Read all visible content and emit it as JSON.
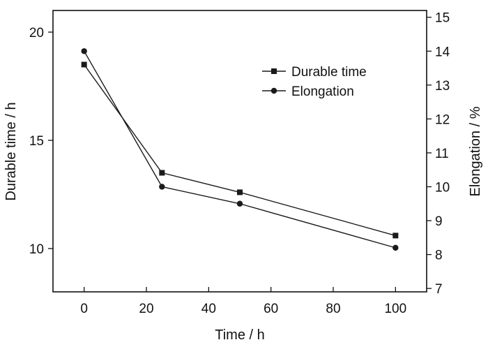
{
  "chart_data": {
    "type": "line",
    "x": [
      0,
      25,
      50,
      100
    ],
    "xlabel": "Time / h",
    "ylabel_left": "Durable time / h",
    "ylabel_right": "Elongation / %",
    "xlim": [
      -10,
      110
    ],
    "ylim_left": [
      8,
      21
    ],
    "ylim_right": [
      6.9,
      15.2
    ],
    "xticks": [
      0,
      20,
      40,
      60,
      80,
      100
    ],
    "yticks_left": [
      10,
      15,
      20
    ],
    "yticks_right": [
      7,
      8,
      9,
      10,
      11,
      12,
      13,
      14,
      15
    ],
    "series": [
      {
        "name": "Durable time",
        "axis": "left",
        "marker": "square",
        "values": [
          18.5,
          13.5,
          12.6,
          10.6
        ]
      },
      {
        "name": "Elongation",
        "axis": "right",
        "marker": "circle",
        "values": [
          14.0,
          10.0,
          9.5,
          8.2
        ]
      }
    ],
    "legend_position": "top-right",
    "grid": false,
    "line_color": "#1a1a1a"
  }
}
